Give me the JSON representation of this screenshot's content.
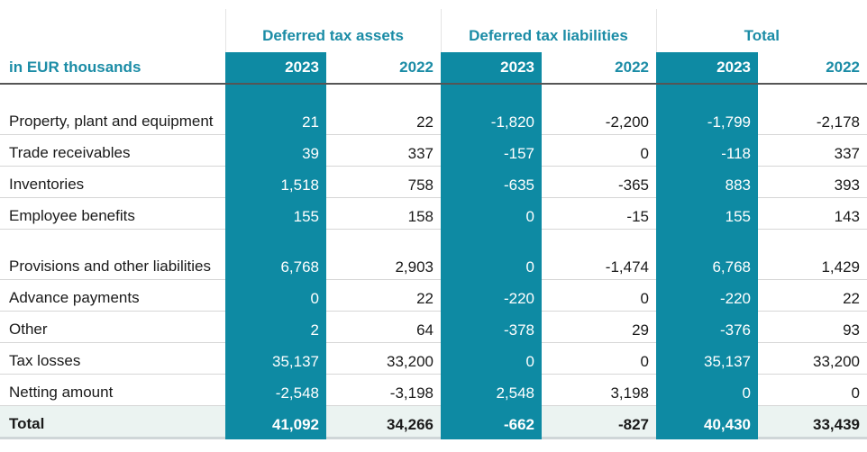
{
  "groups": [
    "Deferred tax assets",
    "Deferred tax liabilities",
    "Total"
  ],
  "header": {
    "unit_label": "in EUR thousands",
    "years": [
      "2023",
      "2022",
      "2023",
      "2022",
      "2023",
      "2022"
    ]
  },
  "rows": [
    {
      "label": "Property, plant and equipment",
      "values": [
        "21",
        "22",
        "-1,820",
        "-2,200",
        "-1,799",
        "-2,178"
      ]
    },
    {
      "label": "Trade receivables",
      "values": [
        "39",
        "337",
        "-157",
        "0",
        "-118",
        "337"
      ]
    },
    {
      "label": "Inventories",
      "values": [
        "1,518",
        "758",
        "-635",
        "-365",
        "883",
        "393"
      ]
    },
    {
      "label": "Employee benefits",
      "values": [
        "155",
        "158",
        "0",
        "-15",
        "155",
        "143"
      ]
    },
    {
      "label": "Provisions and other liabilities",
      "values": [
        "6,768",
        "2,903",
        "0",
        "-1,474",
        "6,768",
        "1,429"
      ]
    },
    {
      "label": "Advance payments",
      "values": [
        "0",
        "22",
        "-220",
        "0",
        "-220",
        "22"
      ]
    },
    {
      "label": "Other",
      "values": [
        "2",
        "64",
        "-378",
        "29",
        "-376",
        "93"
      ]
    },
    {
      "label": "Tax losses",
      "values": [
        "35,137",
        "33,200",
        "0",
        "0",
        "35,137",
        "33,200"
      ]
    },
    {
      "label": "Netting amount",
      "values": [
        "-2,548",
        "-3,198",
        "2,548",
        "3,198",
        "0",
        "0"
      ]
    }
  ],
  "total": {
    "label": "Total",
    "values": [
      "41,092",
      "34,266",
      "-662",
      "-827",
      "40,430",
      "33,439"
    ]
  },
  "colors": {
    "accent": "#0e8aa3",
    "header_text": "#1b8ca6",
    "total_row_bg": "#ebf3f1"
  }
}
